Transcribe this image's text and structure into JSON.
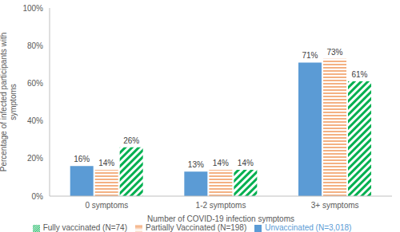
{
  "chart_data": {
    "type": "bar",
    "x_label": "Number of COVID-19 infection symptoms",
    "y_label": "Percentage of infected participants with symptoms",
    "categories": [
      "0 symptoms",
      "1-2 symptoms",
      "3+ symptoms"
    ],
    "series": [
      {
        "name": "Unvaccinated (N=3,018)",
        "color": "#5b9bd5",
        "values": [
          16,
          13,
          71
        ],
        "value_labels": [
          "16%",
          "13%",
          "71%"
        ]
      },
      {
        "name": "Partially Vaccinated (N=198)",
        "color": "#f4b183",
        "values": [
          14,
          14,
          73
        ],
        "value_labels": [
          "14%",
          "14%",
          "73%"
        ]
      },
      {
        "name": "Fully vaccinated (N=74)",
        "color": "#00b050",
        "values": [
          26,
          14,
          61
        ],
        "value_labels": [
          "26%",
          "14%",
          "61%"
        ]
      }
    ],
    "ylim": [
      0,
      100
    ],
    "yticks": [
      {
        "value": 0,
        "label": "0%"
      },
      {
        "value": 20,
        "label": "20%"
      },
      {
        "value": 40,
        "label": "40%"
      },
      {
        "value": 60,
        "label": "60%"
      },
      {
        "value": 80,
        "label": "80%"
      },
      {
        "value": 100,
        "label": "100%"
      }
    ],
    "grid": false,
    "legend": "bottom",
    "data_labels": true
  }
}
